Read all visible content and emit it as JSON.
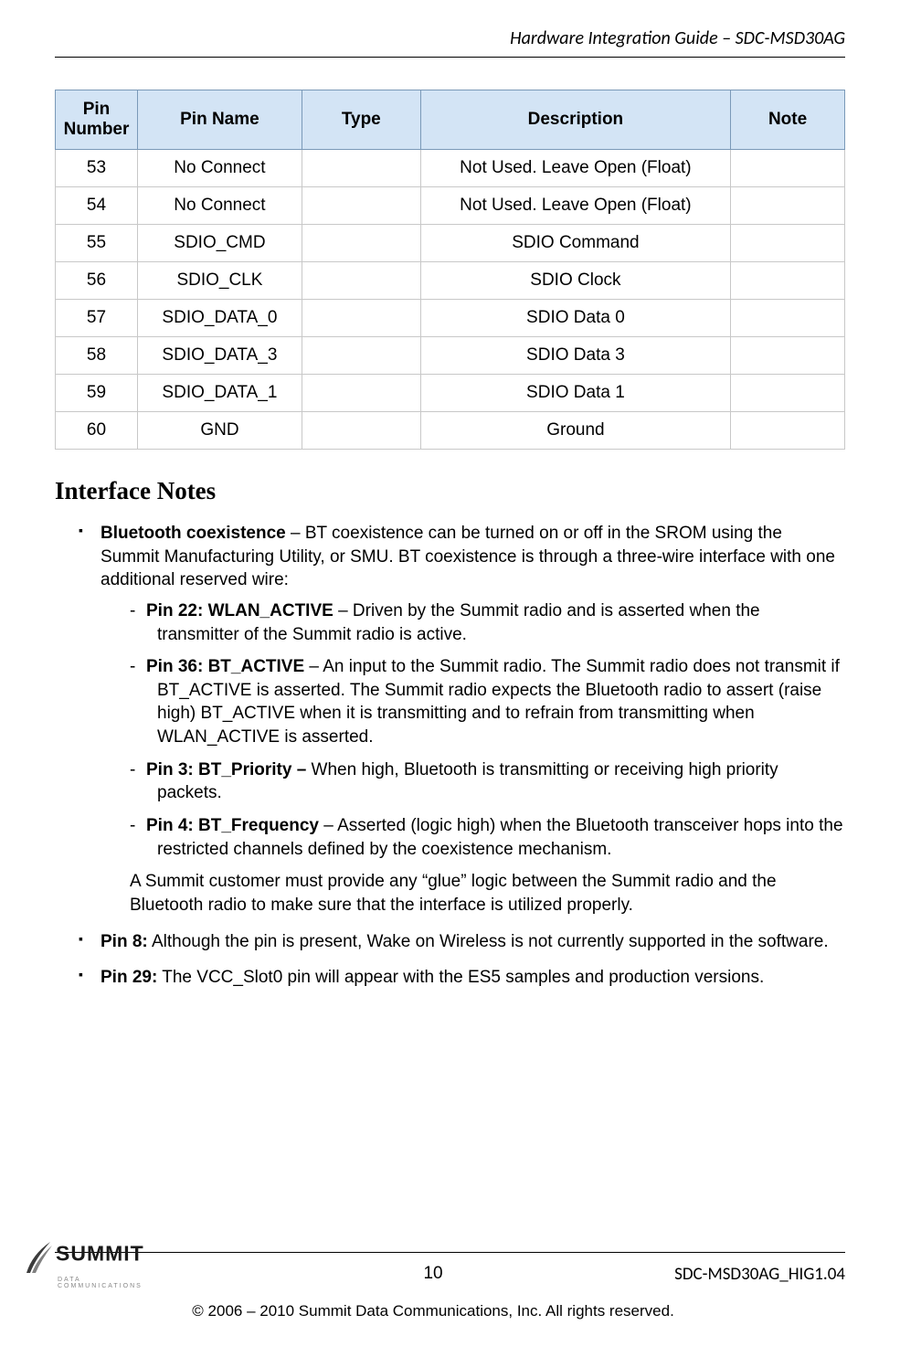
{
  "header": {
    "title": "Hardware Integration Guide – SDC-MSD30AG"
  },
  "table": {
    "columns": [
      "Pin Number",
      "Pin Name",
      "Type",
      "Description",
      "Note"
    ],
    "col_widths": [
      "90px",
      "180px",
      "130px",
      "340px",
      "125px"
    ],
    "header_bg": "#d3e4f5",
    "header_border": "#7a99b8",
    "cell_border": "#c8c8c8",
    "rows": [
      [
        "53",
        "No Connect",
        "",
        "Not Used. Leave Open (Float)",
        ""
      ],
      [
        "54",
        "No Connect",
        "",
        "Not Used. Leave Open (Float)",
        ""
      ],
      [
        "55",
        "SDIO_CMD",
        "",
        "SDIO Command",
        ""
      ],
      [
        "56",
        "SDIO_CLK",
        "",
        "SDIO Clock",
        ""
      ],
      [
        "57",
        "SDIO_DATA_0",
        "",
        "SDIO Data 0",
        ""
      ],
      [
        "58",
        "SDIO_DATA_3",
        "",
        "SDIO Data 3",
        ""
      ],
      [
        "59",
        "SDIO_DATA_1",
        "",
        "SDIO Data 1",
        ""
      ],
      [
        "60",
        "GND",
        "",
        "Ground",
        ""
      ]
    ]
  },
  "section": {
    "heading": "Interface Notes",
    "bullets": {
      "bt_coex": {
        "bold": "Bluetooth coexistence",
        "text": " – BT coexistence can be turned on or off in the SROM using the Summit Manufacturing Utility, or SMU.  BT coexistence is through a three-wire interface with one additional reserved wire:",
        "subs": {
          "pin22": {
            "bold": "Pin 22: WLAN_ACTIVE",
            "text": " – Driven by the Summit radio and is asserted when the transmitter of the Summit radio is active."
          },
          "pin36": {
            "bold": "Pin 36: BT_ACTIVE",
            "text": " – An input to the Summit radio. The Summit radio does not transmit if BT_ACTIVE is asserted. The Summit radio expects the Bluetooth radio to assert (raise high) BT_ACTIVE when it is transmitting and to refrain from transmitting when WLAN_ACTIVE is asserted."
          },
          "pin3": {
            "bold": "Pin 3: BT_Priority – ",
            "text": "When high, Bluetooth is transmitting or receiving high priority packets."
          },
          "pin4": {
            "bold": "Pin 4: BT_Frequency",
            "text": " – Asserted (logic high) when the Bluetooth transceiver hops into the restricted channels defined by the coexistence mechanism."
          }
        },
        "tail": "A Summit customer must provide any “glue” logic between the Summit radio and the Bluetooth radio to make sure that the interface is utilized properly."
      },
      "pin8": {
        "bold": "Pin 8:",
        "text": " Although the pin is present, Wake on Wireless is not currently supported in the software."
      },
      "pin29": {
        "bold": "Pin 29:",
        "text": " The VCC_Slot0 pin will appear with the ES5 samples and production versions."
      }
    }
  },
  "footer": {
    "page_number": "10",
    "doc_id": "SDC-MSD30AG_HIG1.04",
    "copyright": "© 2006 – 2010 Summit Data Communications, Inc. All rights reserved.",
    "logo_main": "SUMMIT",
    "logo_sub": "DATA  COMMUNICATIONS"
  }
}
